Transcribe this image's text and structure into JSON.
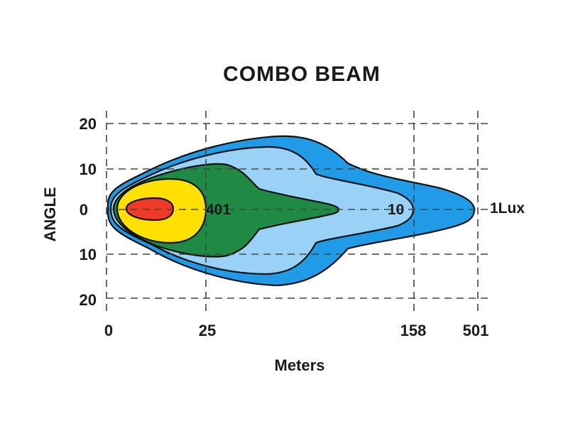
{
  "chart_data": {
    "type": "area",
    "title": "COMBO  BEAM",
    "xlabel": "Meters",
    "ylabel": "ANGLE",
    "x_ticks": [
      "0",
      "25",
      "158",
      "501"
    ],
    "y_ticks": [
      "20",
      "10",
      "0",
      "10",
      "20"
    ],
    "grid": true,
    "contours": [
      {
        "label": "1Lux",
        "color": "#1f9be8"
      },
      {
        "label": "",
        "color": "#9ad2f7"
      },
      {
        "label": "10",
        "color": "#9ad2f7"
      },
      {
        "label": "",
        "color": "#1e8a44"
      },
      {
        "label": "401",
        "color": "#1e8a44"
      },
      {
        "label": "",
        "color": "#ffe000"
      },
      {
        "label": "",
        "color": "#ee3a26"
      }
    ]
  }
}
